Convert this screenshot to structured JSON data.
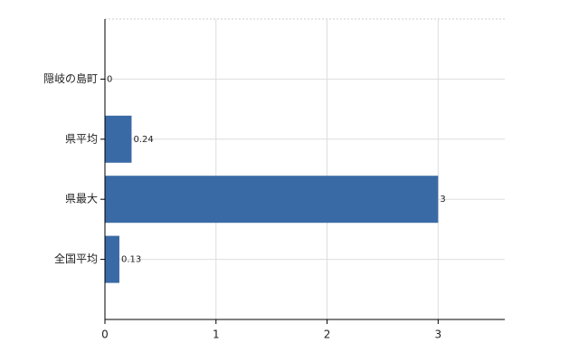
{
  "chart_data": {
    "type": "barh",
    "categories": [
      "隠岐の島町",
      "県平均",
      "県最大",
      "全国平均"
    ],
    "values": [
      0,
      0.24,
      3,
      0.13
    ],
    "color": "#3a6aa5",
    "xlim": [
      0,
      3.6
    ],
    "xticks": [
      0,
      1,
      2,
      3
    ],
    "grid": true
  }
}
